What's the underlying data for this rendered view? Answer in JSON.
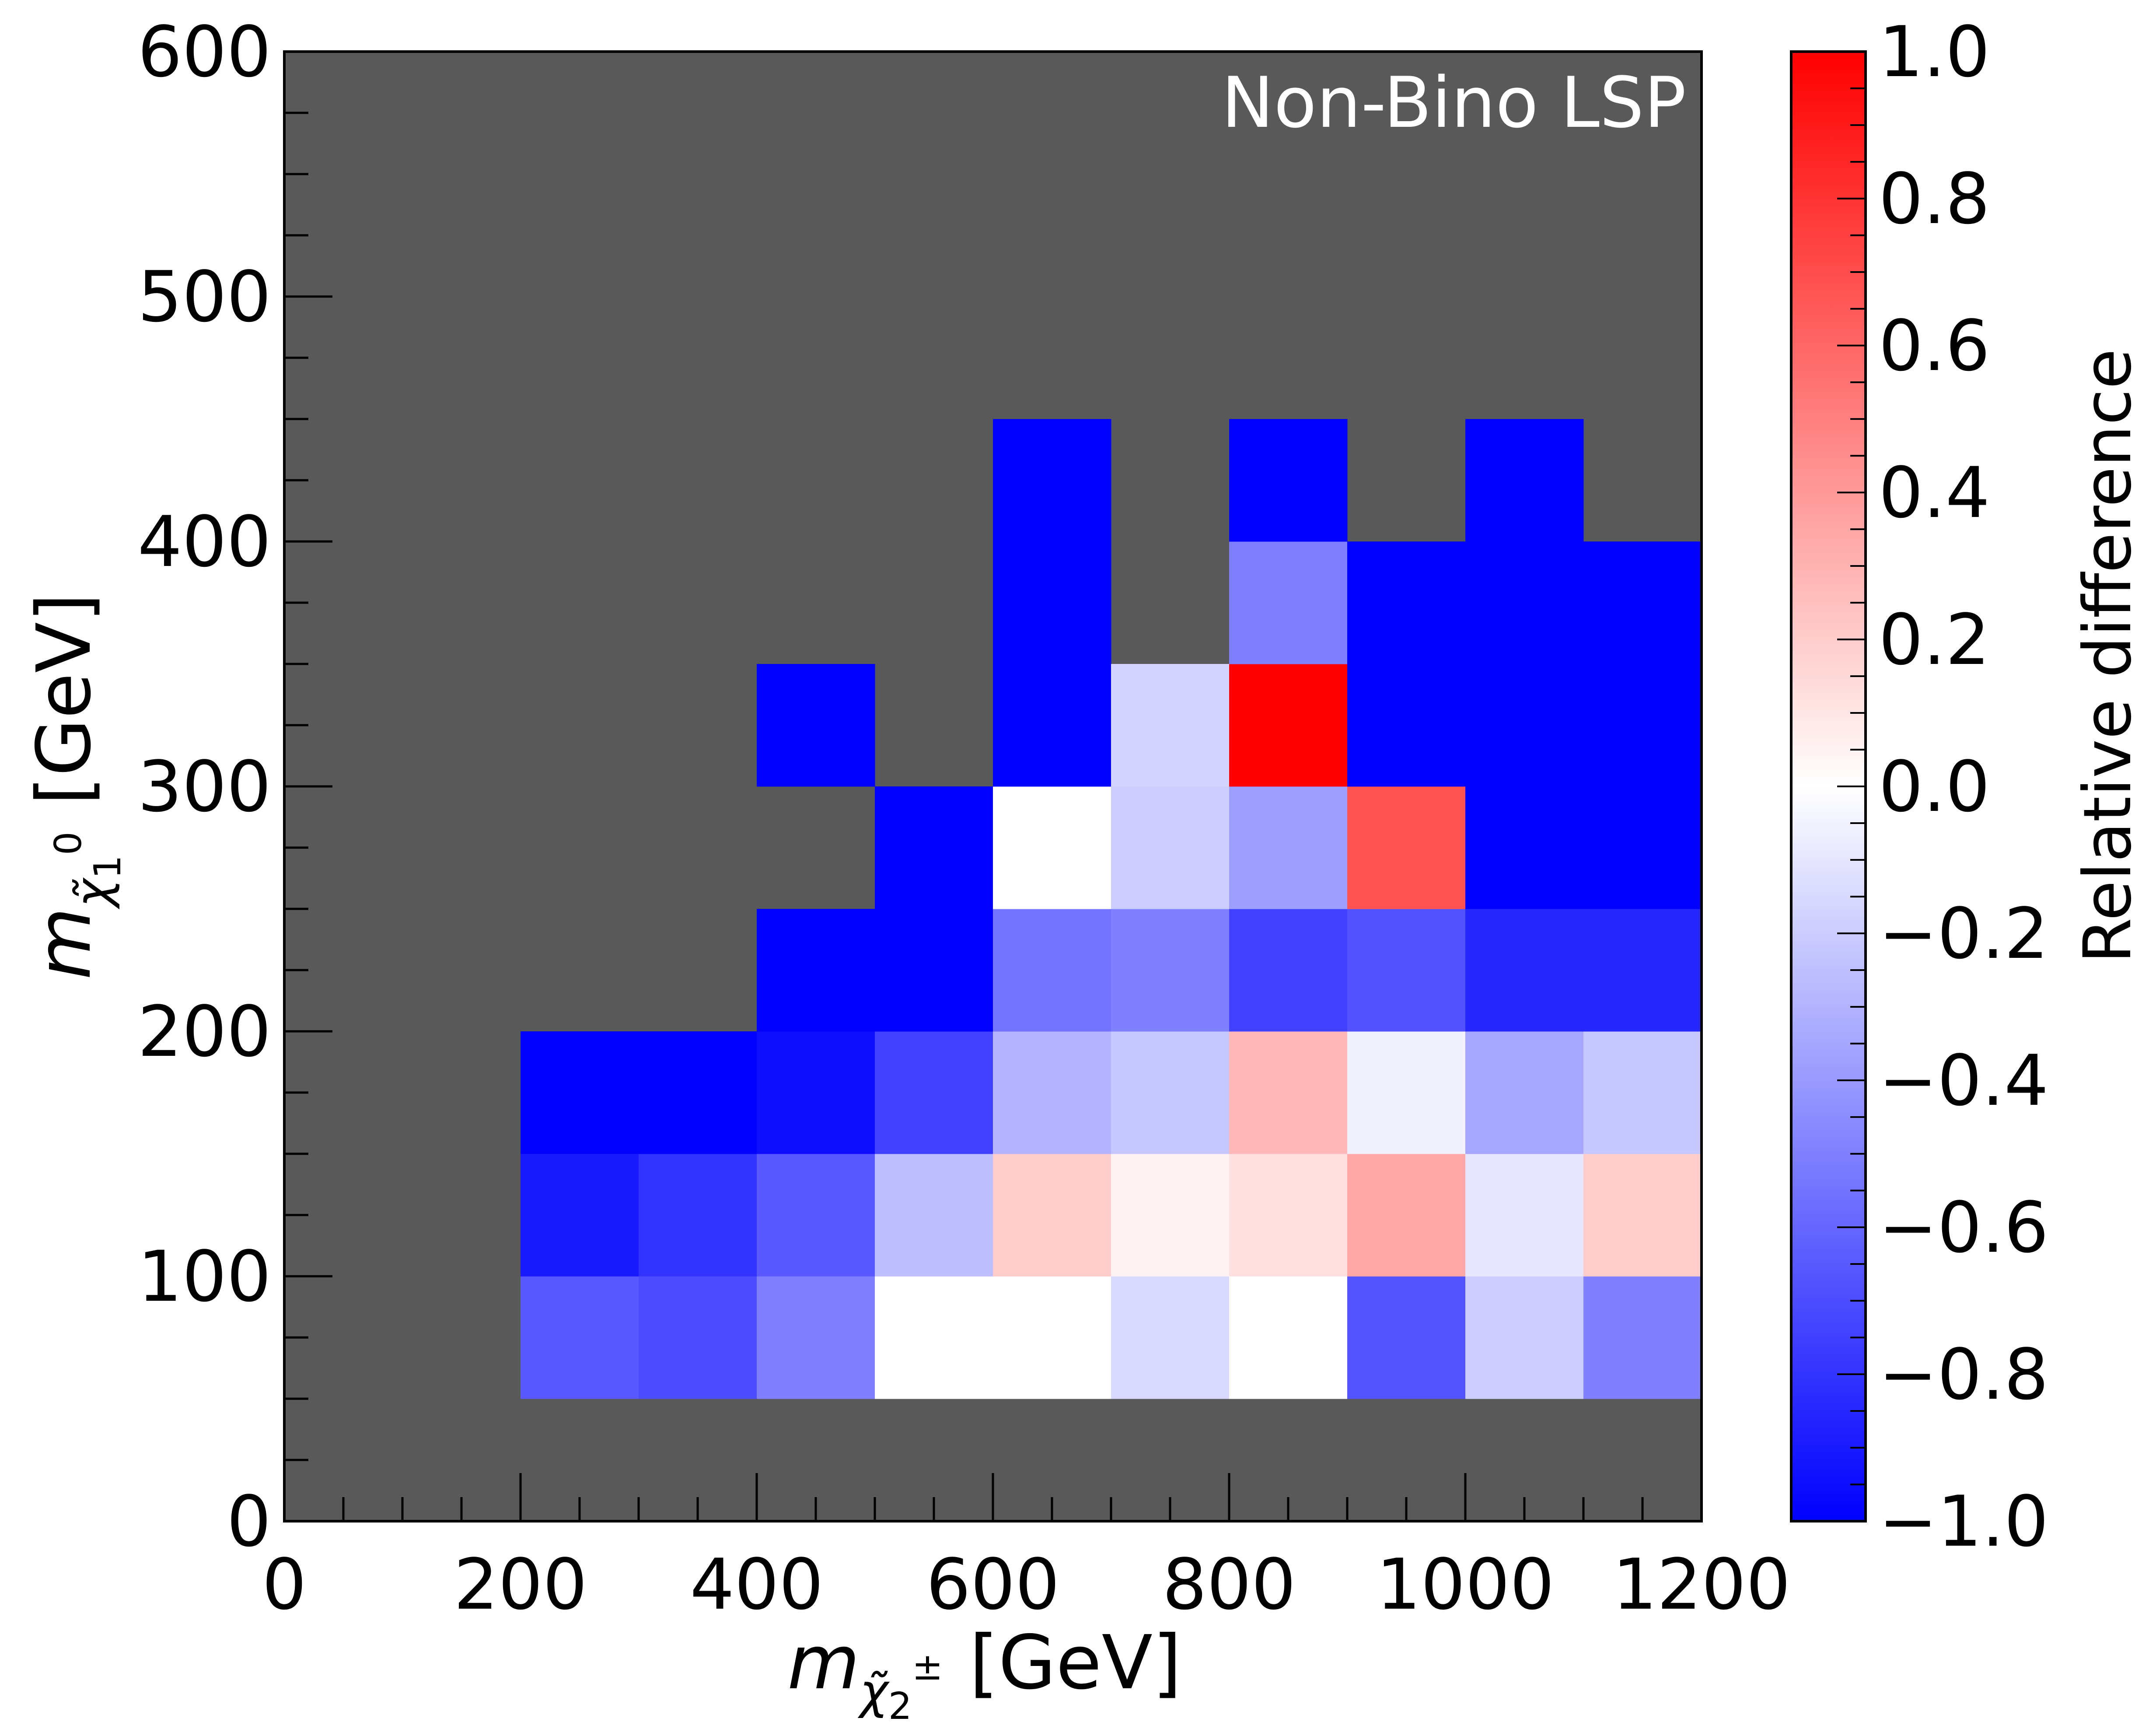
{
  "chart_data": {
    "type": "heatmap",
    "title": "",
    "annotation": "Non-Bino LSP",
    "x": {
      "label_main": "m",
      "label_sub": "χ̃",
      "label_sub_idx": "2",
      "label_sup": "±",
      "label_unit": "[GeV]",
      "range": [
        0,
        1200
      ],
      "ticks": [
        "0",
        "200",
        "400",
        "600",
        "800",
        "1000",
        "1200"
      ],
      "tick_values": [
        0,
        200,
        400,
        600,
        800,
        1000,
        1200
      ],
      "bins": [
        200,
        300,
        400,
        500,
        600,
        700,
        800,
        900,
        1000,
        1100,
        1200
      ]
    },
    "y": {
      "label_main": "m",
      "label_sub": "χ̃",
      "label_sub_idx": "1",
      "label_sup": "0",
      "label_unit": "[GeV]",
      "range": [
        0,
        600
      ],
      "ticks": [
        "0",
        "100",
        "200",
        "300",
        "400",
        "500",
        "600"
      ],
      "tick_values": [
        0,
        100,
        200,
        300,
        400,
        500,
        600
      ],
      "bins": [
        50,
        100,
        150,
        200,
        250,
        300,
        350,
        400,
        450
      ]
    },
    "colorbar": {
      "label": "Relative difference",
      "range": [
        -1.0,
        1.0
      ],
      "ticks": [
        "−1.0",
        "−0.8",
        "−0.6",
        "−0.4",
        "−0.2",
        "0.0",
        "0.2",
        "0.4",
        "0.6",
        "0.8",
        "1.0"
      ],
      "tick_values": [
        -1.0,
        -0.8,
        -0.6,
        -0.4,
        -0.2,
        0.0,
        0.2,
        0.4,
        0.6,
        0.8,
        1.0
      ],
      "low_color": "#0000ff",
      "mid_color": "#ffffff",
      "high_color": "#ff0000"
    },
    "background_color": "#595959",
    "grid": false,
    "values": [
      [
        -0.65,
        -0.7,
        -0.5,
        0.0,
        0.0,
        -0.15,
        0.0,
        -0.67,
        -0.2,
        -0.5
      ],
      [
        -0.9,
        -0.8,
        -0.65,
        -0.25,
        0.2,
        0.05,
        0.12,
        0.35,
        -0.1,
        0.2
      ],
      [
        -1.0,
        -1.0,
        -0.95,
        -0.75,
        -0.3,
        -0.22,
        0.28,
        -0.05,
        -0.35,
        -0.22
      ],
      [
        null,
        null,
        -1.0,
        -1.0,
        -0.55,
        -0.5,
        -0.75,
        -0.68,
        -0.85,
        -0.85
      ],
      [
        null,
        null,
        null,
        -1.0,
        0.0,
        -0.2,
        -0.38,
        0.68,
        -1.0,
        -1.0
      ],
      [
        null,
        null,
        -1.0,
        null,
        -1.0,
        -0.17,
        1.0,
        -1.0,
        -1.0,
        -1.0
      ],
      [
        null,
        null,
        null,
        null,
        -1.0,
        null,
        -0.5,
        -1.0,
        -1.0,
        -1.0
      ],
      [
        null,
        null,
        null,
        null,
        -1.0,
        null,
        -1.0,
        null,
        -1.0,
        null
      ]
    ]
  }
}
